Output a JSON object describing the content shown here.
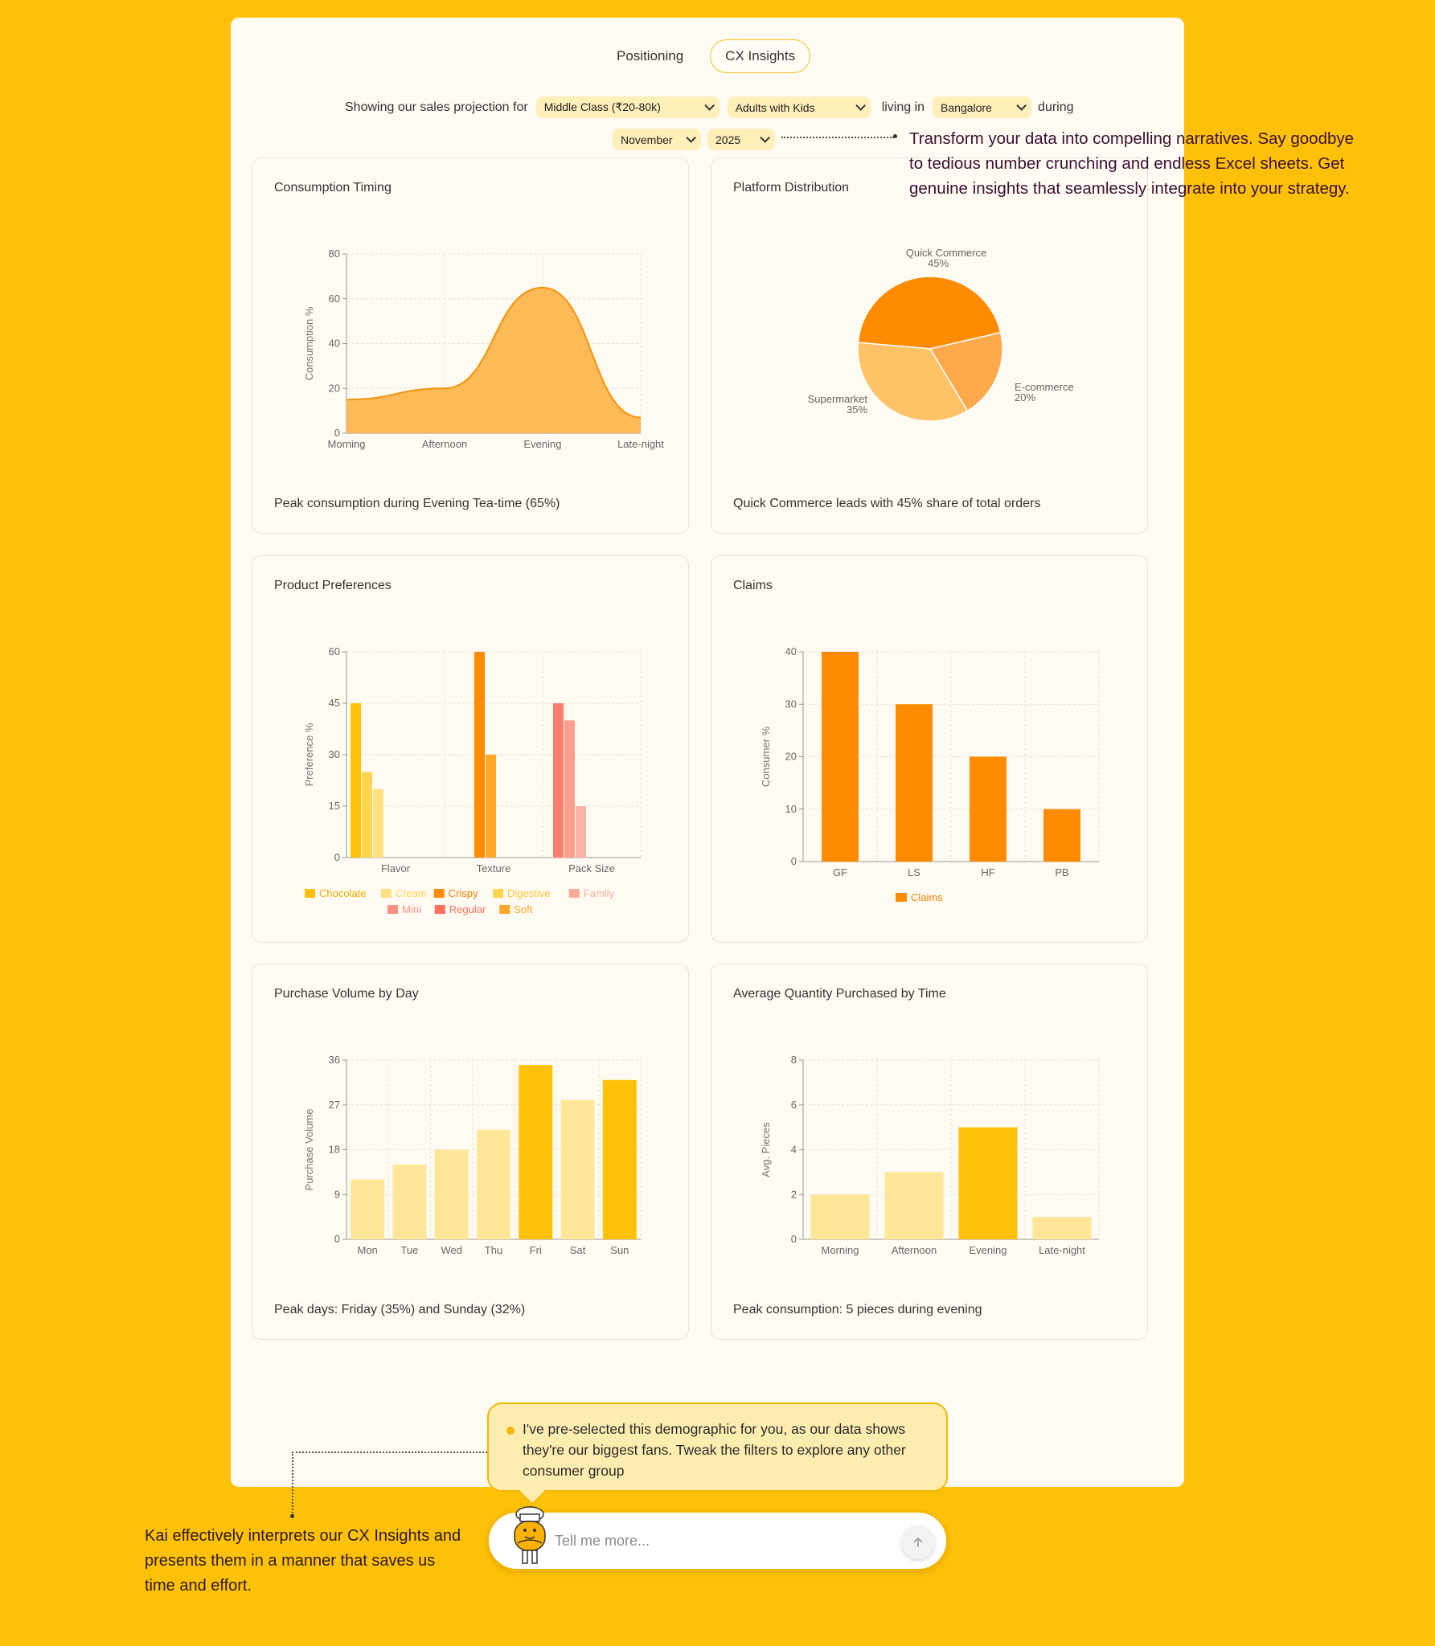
{
  "tabs": [
    {
      "label": "Positioning",
      "active": false
    },
    {
      "label": "CX Insights",
      "active": true
    }
  ],
  "filters": {
    "prefix": "Showing our sales projection for",
    "income": "Middle Class (₹20-80k)",
    "household": "Adults with Kids",
    "living_in": "living in",
    "city": "Bangalore",
    "during": "during",
    "month": "November",
    "year": "2025"
  },
  "annotations": {
    "right": "Transform your data into compelling narratives. Say goodbye to tedious number crunching and endless Excel sheets. Get genuine insights that seamlessly integrate into your strategy.",
    "left": "Kai effectively interprets our CX Insights and presents them in a manner that saves us time and effort."
  },
  "cards": {
    "consumption": {
      "title": "Consumption Timing",
      "footer": "Peak consumption during Evening Tea-time (65%)"
    },
    "platform": {
      "title": "Platform Distribution",
      "footer": "Quick Commerce leads with 45% share of total orders"
    },
    "preferences": {
      "title": "Product Preferences",
      "footer": ""
    },
    "claims": {
      "title": "Claims",
      "footer": ""
    },
    "purchase": {
      "title": "Purchase Volume by Day",
      "footer": "Peak days: Friday (35%) and Sunday (32%)"
    },
    "avgqty": {
      "title": "Average Quantity Purchased by Time",
      "footer": "Peak consumption: 5 pieces during evening"
    }
  },
  "chart_data": [
    {
      "type": "area",
      "title": "Consumption Timing",
      "categories": [
        "Morning",
        "Afternoon",
        "Evening",
        "Late-night"
      ],
      "values": [
        15,
        20,
        65,
        7
      ],
      "ylabel": "Consumption %",
      "ylim": [
        0,
        80
      ],
      "yticks": [
        0,
        20,
        40,
        60,
        80
      ],
      "color": "#FFB347",
      "stroke": "#F5920A"
    },
    {
      "type": "pie",
      "title": "Platform Distribution",
      "slices": [
        {
          "label": "Quick Commerce",
          "value": 45,
          "pct": "45%",
          "color": "#FF8C00"
        },
        {
          "label": "E-commerce",
          "value": 20,
          "pct": "20%",
          "color": "#FFA94D"
        },
        {
          "label": "Supermarket",
          "value": 35,
          "pct": "35%",
          "color": "#FFC266"
        }
      ]
    },
    {
      "type": "bar",
      "title": "Product Preferences",
      "categories": [
        "Flavor",
        "Texture",
        "Pack Size"
      ],
      "ylabel": "Preference %",
      "ylim": [
        0,
        60
      ],
      "yticks": [
        0,
        15,
        30,
        45,
        60
      ],
      "series": [
        {
          "name": "Chocolate",
          "category": "Flavor",
          "value": 45,
          "color": "#FFC107"
        },
        {
          "name": "Cream",
          "category": "Flavor",
          "value": 25,
          "color": "#FFD54F"
        },
        {
          "name": "Digestive",
          "category": "Flavor",
          "value": 20,
          "color": "#FFE082"
        },
        {
          "name": "Crispy",
          "category": "Texture",
          "value": 60,
          "color": "#FF8C00"
        },
        {
          "name": "Soft",
          "category": "Texture",
          "value": 30,
          "color": "#FFA726"
        },
        {
          "name": "Regular",
          "category": "Pack Size",
          "value": 45,
          "color": "#FF7F6E"
        },
        {
          "name": "Family",
          "category": "Pack Size",
          "value": 40,
          "color": "#FF9E8C"
        },
        {
          "name": "Mini",
          "category": "Pack Size",
          "value": 15,
          "color": "#FFB3A6"
        }
      ],
      "legend": [
        {
          "name": "Chocolate",
          "color": "#FFC107",
          "text_color": "#F2A900"
        },
        {
          "name": "Cream",
          "color": "#FFE082",
          "text_color": "#FFD54F"
        },
        {
          "name": "Crispy",
          "color": "#FF8C00",
          "text_color": "#F27E00"
        },
        {
          "name": "Digestive",
          "color": "#FFD54F",
          "text_color": "#F7C536"
        },
        {
          "name": "Family",
          "color": "#FFA99A",
          "text_color": "#FFA99A"
        },
        {
          "name": "Mini",
          "color": "#FF8F80",
          "text_color": "#FF8F80"
        },
        {
          "name": "Regular",
          "color": "#FF6F5E",
          "text_color": "#FF6F5E"
        },
        {
          "name": "Soft",
          "color": "#FFA726",
          "text_color": "#FFA726"
        }
      ]
    },
    {
      "type": "bar",
      "title": "Claims",
      "categories": [
        "GF",
        "LS",
        "HF",
        "PB"
      ],
      "values": [
        40,
        30,
        20,
        10
      ],
      "ylabel": "Consumer %",
      "ylim": [
        0,
        40
      ],
      "yticks": [
        0,
        10,
        20,
        30,
        40
      ],
      "legend": [
        {
          "name": "Claims",
          "color": "#FF8C00"
        }
      ]
    },
    {
      "type": "bar",
      "title": "Purchase Volume by Day",
      "categories": [
        "Mon",
        "Tue",
        "Wed",
        "Thu",
        "Fri",
        "Sat",
        "Sun"
      ],
      "values": [
        12,
        15,
        18,
        22,
        35,
        28,
        32
      ],
      "highlight": [
        false,
        false,
        false,
        false,
        true,
        false,
        true
      ],
      "ylabel": "Purchase Volume",
      "ylim": [
        0,
        36
      ],
      "yticks": [
        0,
        9,
        18,
        27,
        36
      ]
    },
    {
      "type": "bar",
      "title": "Average Quantity Purchased by Time",
      "categories": [
        "Morning",
        "Afternoon",
        "Evening",
        "Late-night"
      ],
      "values": [
        2,
        3,
        5,
        1
      ],
      "highlight": [
        false,
        false,
        true,
        false
      ],
      "ylabel": "Avg. Pieces",
      "ylim": [
        0,
        8
      ],
      "yticks": [
        0,
        2,
        4,
        6,
        8
      ]
    }
  ],
  "colors": {
    "background": "#FFC107",
    "panel": "#FFFBF3",
    "accent": "#F2B705",
    "highlight_bar": "#FFC107",
    "muted_bar": "#FFE699"
  },
  "chat": {
    "bubble": "I've pre-selected this demographic for you, as our data shows they're our biggest fans. Tweak the filters to explore any other consumer group",
    "placeholder": "Tell me more...",
    "send_icon": "arrow-up-icon",
    "mascot_icon": "chef-mascot-icon"
  }
}
